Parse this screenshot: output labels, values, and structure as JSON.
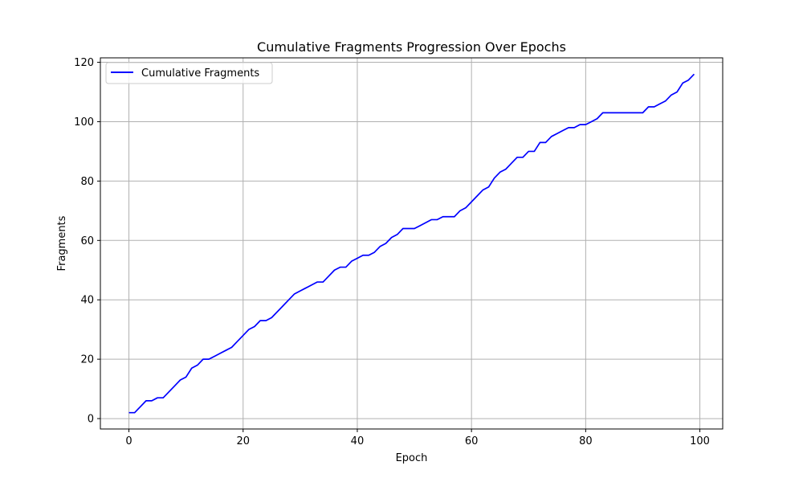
{
  "chart_data": {
    "type": "line",
    "title": "Cumulative Fragments Progression Over Epochs",
    "xlabel": "Epoch",
    "ylabel": "Fragments",
    "xlim": [
      -5,
      104
    ],
    "ylim": [
      -3.5,
      121.5
    ],
    "xticks": [
      0,
      20,
      40,
      60,
      80,
      100
    ],
    "yticks": [
      0,
      20,
      40,
      60,
      80,
      100,
      120
    ],
    "grid": true,
    "legend_position": "top-left",
    "series": [
      {
        "name": "Cumulative Fragments",
        "color": "#0000ff",
        "x": [
          0,
          1,
          2,
          3,
          4,
          5,
          6,
          7,
          8,
          9,
          10,
          11,
          12,
          13,
          14,
          15,
          16,
          17,
          18,
          19,
          20,
          21,
          22,
          23,
          24,
          25,
          26,
          27,
          28,
          29,
          30,
          31,
          32,
          33,
          34,
          35,
          36,
          37,
          38,
          39,
          40,
          41,
          42,
          43,
          44,
          45,
          46,
          47,
          48,
          49,
          50,
          51,
          52,
          53,
          54,
          55,
          56,
          57,
          58,
          59,
          60,
          61,
          62,
          63,
          64,
          65,
          66,
          67,
          68,
          69,
          70,
          71,
          72,
          73,
          74,
          75,
          76,
          77,
          78,
          79,
          80,
          81,
          82,
          83,
          84,
          85,
          86,
          87,
          88,
          89,
          90,
          91,
          92,
          93,
          94,
          95,
          96,
          97,
          98,
          99
        ],
        "y": [
          2,
          2,
          4,
          6,
          6,
          7,
          7,
          9,
          11,
          13,
          14,
          17,
          18,
          20,
          20,
          21,
          22,
          23,
          24,
          26,
          28,
          30,
          31,
          33,
          33,
          34,
          36,
          38,
          40,
          42,
          43,
          44,
          45,
          46,
          46,
          48,
          50,
          51,
          51,
          53,
          54,
          55,
          55,
          56,
          58,
          59,
          61,
          62,
          64,
          64,
          64,
          65,
          66,
          67,
          67,
          68,
          68,
          68,
          70,
          71,
          73,
          75,
          77,
          78,
          81,
          83,
          84,
          86,
          88,
          88,
          90,
          90,
          93,
          93,
          95,
          96,
          97,
          98,
          98,
          99,
          99,
          100,
          101,
          103,
          103,
          103,
          103,
          103,
          103,
          103,
          103,
          105,
          105,
          106,
          107,
          109,
          110,
          113,
          114,
          116
        ]
      }
    ]
  }
}
